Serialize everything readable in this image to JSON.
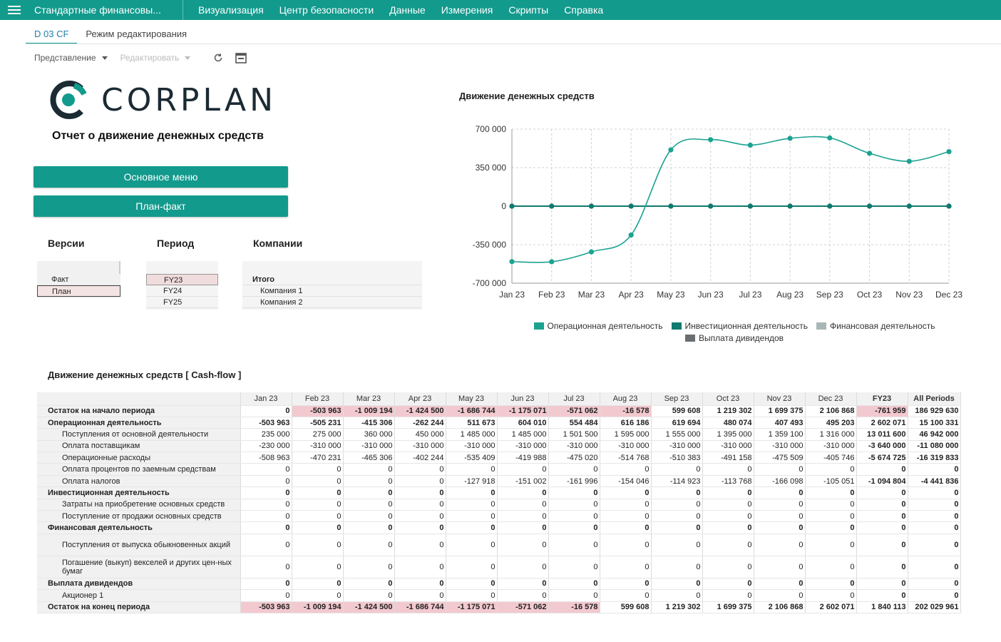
{
  "topbar": {
    "app_title": "Стандартные финансовы...",
    "menu": [
      "Визуализация",
      "Центр безопасности",
      "Данные",
      "Измерения",
      "Скрипты",
      "Справка"
    ]
  },
  "tabs": [
    "D 03 CF",
    "Режим редактирования"
  ],
  "toolbar": {
    "view_label": "Представление",
    "edit_label": "Редактировать"
  },
  "logo_text": "CORPLAN",
  "report_title": "Отчет о движение денежных средств",
  "buttons": {
    "main_menu": "Основное меню",
    "plan_fact": "План-факт"
  },
  "filters": {
    "versions_label": "Версии",
    "versions": [
      "Факт",
      "План"
    ],
    "period_label": "Период",
    "periods": [
      "FY23",
      "FY24",
      "FY25"
    ],
    "companies_label": "Компании",
    "companies": [
      "Итого",
      "Компания 1",
      "Компания 2"
    ]
  },
  "colors": {
    "accent": "#129a8d",
    "negative_cell": "#f2c9cf"
  },
  "chart_data": {
    "type": "line",
    "title": "Движение денежных средств",
    "categories": [
      "Jan 23",
      "Feb 23",
      "Mar 23",
      "Apr 23",
      "May 23",
      "Jun 23",
      "Jul 23",
      "Aug 23",
      "Sep 23",
      "Oct 23",
      "Nov 23",
      "Dec 23"
    ],
    "y_ticks": [
      "700 000",
      "350 000",
      "0",
      "-350 000",
      "-700 000"
    ],
    "ylim": [
      -700000,
      700000
    ],
    "grid": true,
    "legend_position": "bottom",
    "series": [
      {
        "name": "Операционная деятельность",
        "color": "#1ba391",
        "values": [
          -503963,
          -505231,
          -415306,
          -262244,
          511673,
          604010,
          554484,
          616186,
          619694,
          480074,
          407493,
          495203
        ]
      },
      {
        "name": "Инвестиционная деятельность",
        "color": "#0f7a6e",
        "values": [
          0,
          0,
          0,
          0,
          0,
          0,
          0,
          0,
          0,
          0,
          0,
          0
        ]
      },
      {
        "name": "Финансовая деятельность",
        "color": "#a9b6b6",
        "values": [
          0,
          0,
          0,
          0,
          0,
          0,
          0,
          0,
          0,
          0,
          0,
          0
        ]
      },
      {
        "name": "Выплата дивидендов",
        "color": "#6b6e70",
        "values": [
          0,
          0,
          0,
          0,
          0,
          0,
          0,
          0,
          0,
          0,
          0,
          0
        ]
      }
    ]
  },
  "table": {
    "title": "Движение денежных средств [ Cash-flow ]",
    "columns": [
      "Jan 23",
      "Feb 23",
      "Mar 23",
      "Apr 23",
      "May 23",
      "Jun 23",
      "Jul 23",
      "Aug 23",
      "Sep 23",
      "Oct 23",
      "Nov 23",
      "Dec 23",
      "FY23",
      "All Periods"
    ],
    "rows": [
      {
        "label": "Остаток на начало периода",
        "level": 0,
        "bold": true,
        "values": [
          "0",
          "-503 963",
          "-1 009 194",
          "-1 424 500",
          "-1 686 744",
          "-1 175 071",
          "-571 062",
          "-16 578",
          "599 608",
          "1 219 302",
          "1 699 375",
          "2 106 868",
          "-761 959",
          "186 929 630"
        ],
        "highlight": [
          false,
          true,
          true,
          true,
          true,
          true,
          true,
          true,
          false,
          false,
          false,
          false,
          true,
          false
        ]
      },
      {
        "label": "Операционная деятельность",
        "level": 0,
        "bold": true,
        "values": [
          "-503 963",
          "-505 231",
          "-415 306",
          "-262 244",
          "511 673",
          "604 010",
          "554 484",
          "616 186",
          "619 694",
          "480 074",
          "407 493",
          "495 203",
          "2 602 071",
          "15 100 331"
        ]
      },
      {
        "label": "Поступления от основной деятельности",
        "level": 2,
        "values": [
          "235 000",
          "275 000",
          "360 000",
          "450 000",
          "1 485 000",
          "1 485 000",
          "1 501 500",
          "1 595 000",
          "1 555 000",
          "1 395 000",
          "1 359 100",
          "1 316 000",
          "13 011 600",
          "46 942 000"
        ]
      },
      {
        "label": "Оплата поставщикам",
        "level": 2,
        "values": [
          "-230 000",
          "-310 000",
          "-310 000",
          "-310 000",
          "-310 000",
          "-310 000",
          "-310 000",
          "-310 000",
          "-310 000",
          "-310 000",
          "-310 000",
          "-310 000",
          "-3 640 000",
          "-11 080 000"
        ]
      },
      {
        "label": "Операционные расходы",
        "level": 2,
        "values": [
          "-508 963",
          "-470 231",
          "-465 306",
          "-402 244",
          "-535 409",
          "-419 988",
          "-475 020",
          "-514 768",
          "-510 383",
          "-491 158",
          "-475 509",
          "-405 746",
          "-5 674 725",
          "-16 319 833"
        ]
      },
      {
        "label": "Оплата процентов по заемным средствам",
        "level": 2,
        "values": [
          "0",
          "0",
          "0",
          "0",
          "0",
          "0",
          "0",
          "0",
          "0",
          "0",
          "0",
          "0",
          "0",
          "0"
        ]
      },
      {
        "label": "Оплата налогов",
        "level": 2,
        "values": [
          "0",
          "0",
          "0",
          "0",
          "-127 918",
          "-151 002",
          "-161 996",
          "-154 046",
          "-114 923",
          "-113 768",
          "-166 098",
          "-105 051",
          "-1 094 804",
          "-4 441 836"
        ]
      },
      {
        "label": "Инвестиционная деятельность",
        "level": 0,
        "bold": true,
        "values": [
          "0",
          "0",
          "0",
          "0",
          "0",
          "0",
          "0",
          "0",
          "0",
          "0",
          "0",
          "0",
          "0",
          "0"
        ]
      },
      {
        "label": "Затраты на приобретение основных средств",
        "level": 2,
        "values": [
          "0",
          "0",
          "0",
          "0",
          "0",
          "0",
          "0",
          "0",
          "0",
          "0",
          "0",
          "0",
          "0",
          "0"
        ]
      },
      {
        "label": "Поступление от продажи основных средств",
        "level": 2,
        "values": [
          "0",
          "0",
          "0",
          "0",
          "0",
          "0",
          "0",
          "0",
          "0",
          "0",
          "0",
          "0",
          "0",
          "0"
        ]
      },
      {
        "label": "Финансовая деятельность",
        "level": 0,
        "bold": true,
        "values": [
          "0",
          "0",
          "0",
          "0",
          "0",
          "0",
          "0",
          "0",
          "0",
          "0",
          "0",
          "0",
          "0",
          "0"
        ]
      },
      {
        "label": "Поступления от выпуска обыкновенных акций",
        "level": 2,
        "tall": true,
        "values": [
          "0",
          "0",
          "0",
          "0",
          "0",
          "0",
          "0",
          "0",
          "0",
          "0",
          "0",
          "0",
          "0",
          "0"
        ]
      },
      {
        "label": "Погашение (выкуп) векселей и других цен-ных бумаг",
        "level": 2,
        "tall": true,
        "values": [
          "0",
          "0",
          "0",
          "0",
          "0",
          "0",
          "0",
          "0",
          "0",
          "0",
          "0",
          "0",
          "0",
          "0"
        ]
      },
      {
        "label": "Выплата дивидендов",
        "level": 0,
        "bold": true,
        "values": [
          "0",
          "0",
          "0",
          "0",
          "0",
          "0",
          "0",
          "0",
          "0",
          "0",
          "0",
          "0",
          "0",
          "0"
        ]
      },
      {
        "label": "Акционер 1",
        "level": 2,
        "values": [
          "0",
          "0",
          "0",
          "0",
          "0",
          "0",
          "0",
          "0",
          "0",
          "0",
          "0",
          "0",
          "0",
          "0"
        ]
      },
      {
        "label": "Остаток на конец периода",
        "level": 0,
        "bold": true,
        "values": [
          "-503 963",
          "-1 009 194",
          "-1 424 500",
          "-1 686 744",
          "-1 175 071",
          "-571 062",
          "-16 578",
          "599 608",
          "1 219 302",
          "1 699 375",
          "2 106 868",
          "2 602 071",
          "1 840 113",
          "202 029 961"
        ],
        "highlight": [
          true,
          true,
          true,
          true,
          true,
          true,
          true,
          false,
          false,
          false,
          false,
          false,
          false,
          false
        ]
      }
    ]
  }
}
